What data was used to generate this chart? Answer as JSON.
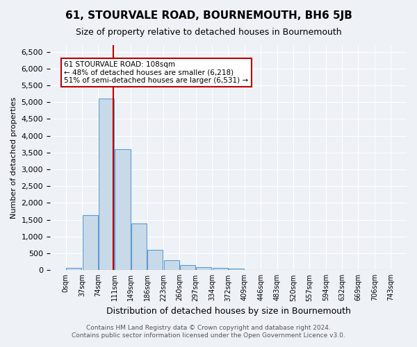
{
  "title": "61, STOURVALE ROAD, BOURNEMOUTH, BH6 5JB",
  "subtitle": "Size of property relative to detached houses in Bournemouth",
  "xlabel": "Distribution of detached houses by size in Bournemouth",
  "ylabel": "Number of detached properties",
  "footer_line1": "Contains HM Land Registry data © Crown copyright and database right 2024.",
  "footer_line2": "Contains public sector information licensed under the Open Government Licence v3.0.",
  "bin_labels": [
    "0sqm",
    "37sqm",
    "74sqm",
    "111sqm",
    "149sqm",
    "186sqm",
    "223sqm",
    "260sqm",
    "297sqm",
    "334sqm",
    "372sqm",
    "409sqm",
    "446sqm",
    "483sqm",
    "520sqm",
    "557sqm",
    "594sqm",
    "632sqm",
    "669sqm",
    "706sqm",
    "743sqm"
  ],
  "bar_values": [
    75,
    1630,
    5100,
    3600,
    1400,
    600,
    290,
    150,
    90,
    70,
    55,
    0,
    0,
    0,
    0,
    0,
    0,
    0,
    0,
    0
  ],
  "bar_color": "#c8d9e8",
  "bar_edge_color": "#5b9bd5",
  "vline_x": 2.85,
  "vline_color": "#c00000",
  "annotation_text": "61 STOURVALE ROAD: 108sqm\n← 48% of detached houses are smaller (6,218)\n51% of semi-detached houses are larger (6,531) →",
  "annotation_box_color": "#ffffff",
  "annotation_box_edge": "#c00000",
  "ylim": [
    0,
    6700
  ],
  "yticks": [
    0,
    500,
    1000,
    1500,
    2000,
    2500,
    3000,
    3500,
    4000,
    4500,
    5000,
    5500,
    6000,
    6500
  ],
  "bg_color": "#eef2f7",
  "plot_bg_color": "#eef2f7"
}
